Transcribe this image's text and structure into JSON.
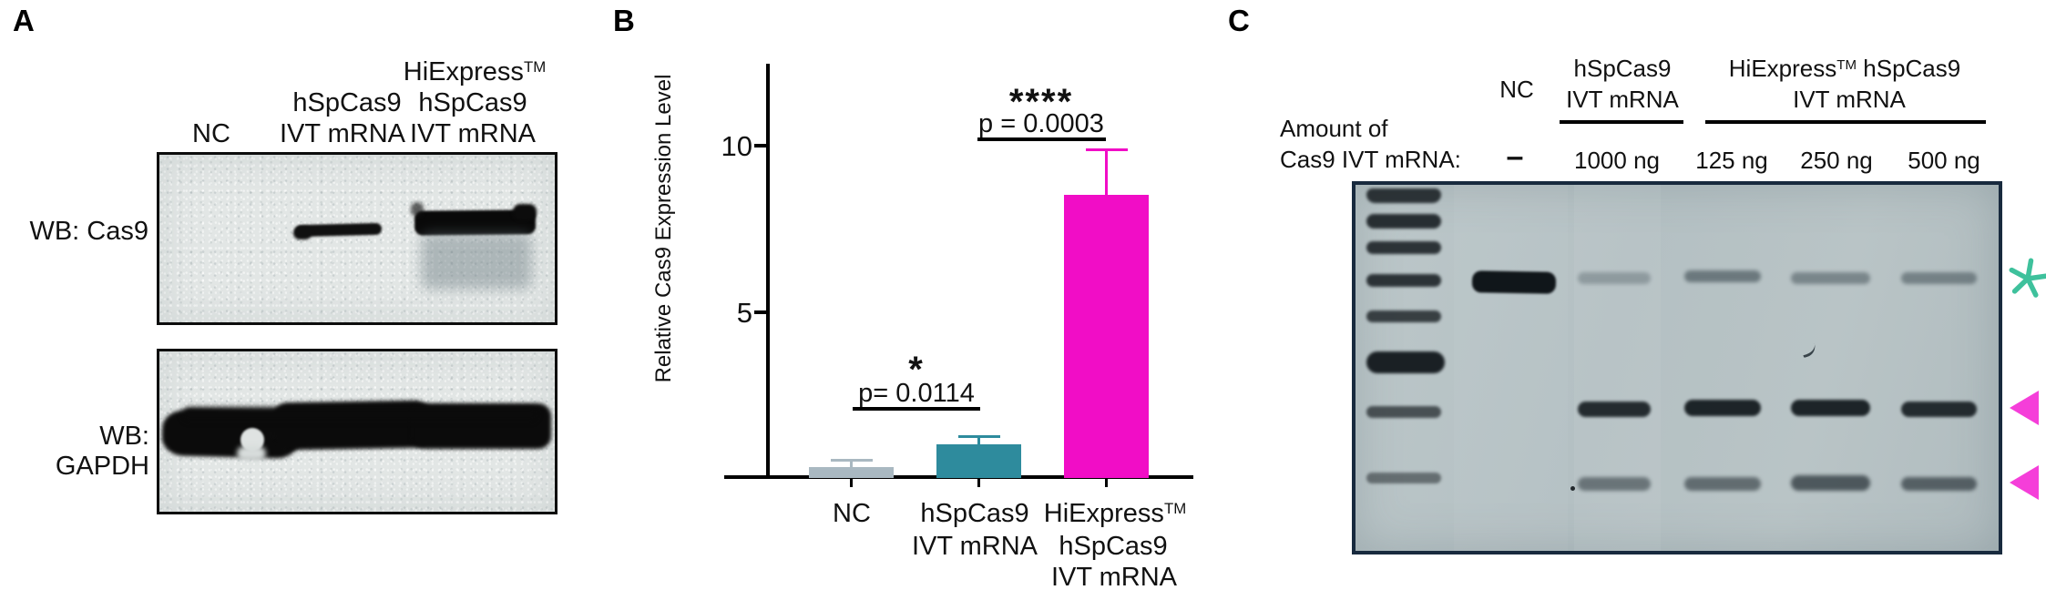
{
  "panel_a": {
    "label": "A",
    "wb_cas9": "WB: Cas9",
    "wb_gapdh": "WB: GAPDH",
    "lane_nc": "NC",
    "lane2_line1": "hSpCas9",
    "lane2_line2": "IVT mRNA",
    "lane3_base": "HiExpress",
    "lane3_sup": "TM",
    "lane3_line2": "hSpCas9",
    "lane3_line3": "IVT mRNA"
  },
  "panel_b": {
    "label": "B",
    "ylabel": "Relative Cas9 Expression Level",
    "ytick_10": "10",
    "ytick_5": "5",
    "sig1_stars": "*",
    "sig1_p": "p= 0.0114",
    "sig2_stars": "****",
    "sig2_p": "p = 0.0003",
    "x_nc": "NC",
    "x_g2_line1": "hSpCas9",
    "x_g2_line2": "IVT mRNA",
    "x_g3_base": "HiExpress",
    "x_g3_sup": "TM",
    "x_g3_line2": "hSpCas9",
    "x_g3_line3": "IVT mRNA"
  },
  "chart_data": {
    "type": "bar",
    "title": "",
    "ylabel": "Relative Cas9 Expression Level",
    "categories": [
      "NC",
      "hSpCas9 IVT mRNA",
      "HiExpress™ hSpCas9 IVT mRNA"
    ],
    "values": [
      0.3,
      1.0,
      8.6
    ],
    "errors_upper": [
      0.22,
      0.25,
      1.4
    ],
    "bar_colors": [
      "#a9b8c1",
      "#2e8b9d",
      "#f10dc6"
    ],
    "ylim": [
      0,
      12
    ],
    "yticks": [
      5,
      10
    ],
    "grid": false,
    "legend": "none",
    "significance": [
      {
        "between": [
          "NC",
          "hSpCas9 IVT mRNA"
        ],
        "stars": "*",
        "label": "p= 0.0114"
      },
      {
        "between": [
          "hSpCas9 IVT mRNA",
          "HiExpress™ hSpCas9 IVT mRNA"
        ],
        "stars": "****",
        "label": "p = 0.0003"
      }
    ]
  },
  "panel_c": {
    "label": "C",
    "amount_line1": "Amount of",
    "amount_line2": "Cas9 IVT mRNA:",
    "nc": "NC",
    "nc_amount": "–",
    "g1_line1": "hSpCas9",
    "g1_line2": "IVT mRNA",
    "g1_amount": "1000 ng",
    "g2_base": "HiExpress",
    "g2_sup": "TM",
    "g2_rest": " hSpCas9",
    "g2_line2": "IVT mRNA",
    "g2_amounts": [
      "125 ng",
      "250 ng",
      "500 ng"
    ],
    "markers": {
      "uncut_asterisk_color": "#3ec19c",
      "cleaved_arrow_color": "#f53ed9"
    }
  }
}
